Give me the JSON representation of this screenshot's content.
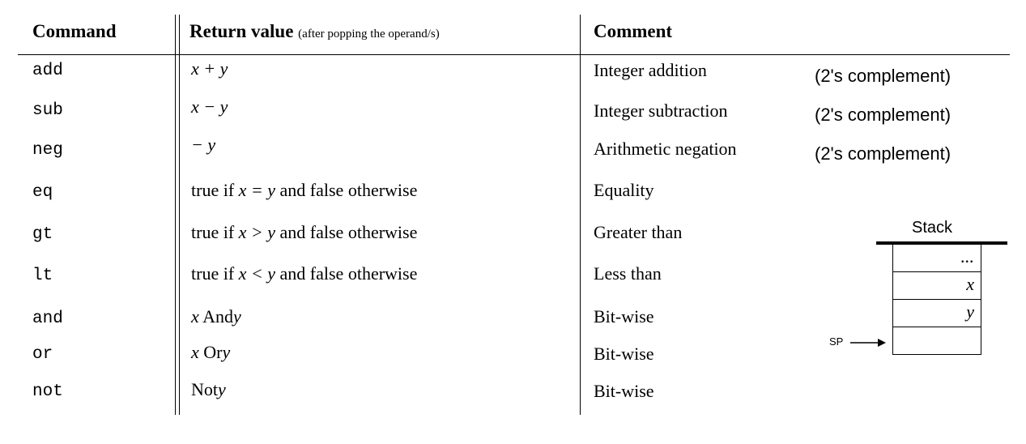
{
  "headers": {
    "command": "Command",
    "return_value": "Return value",
    "return_value_note": "(after popping the operand/s)",
    "comment": "Comment"
  },
  "rows": [
    {
      "command": "add",
      "return_value": "x + y",
      "comment": "Integer addition",
      "note": "(2's complement)"
    },
    {
      "command": "sub",
      "return_value": "x − y",
      "comment": "Integer subtraction",
      "note": "(2's complement)"
    },
    {
      "command": "neg",
      "return_value": "− y",
      "comment": "Arithmetic negation",
      "note": "(2's complement)"
    },
    {
      "command": "eq",
      "return_value_prefix": "true if",
      "return_value_expr": "x = y",
      "return_value_suffix": "and false otherwise",
      "comment": "Equality"
    },
    {
      "command": "gt",
      "return_value_prefix": "true if",
      "return_value_expr": "x > y",
      "return_value_suffix": "and false otherwise",
      "comment": "Greater than"
    },
    {
      "command": "lt",
      "return_value_prefix": "true if",
      "return_value_expr": "x < y",
      "return_value_suffix": "and false otherwise",
      "comment": "Less than"
    },
    {
      "command": "and",
      "return_value_a": "x",
      "return_value_op": "And",
      "return_value_b": "y",
      "comment": "Bit-wise"
    },
    {
      "command": "or",
      "return_value_a": "x",
      "return_value_op": "Or",
      "return_value_b": "y",
      "comment": "Bit-wise"
    },
    {
      "command": "not",
      "return_value_op": "Not",
      "return_value_b": "y",
      "comment": "Bit-wise"
    }
  ],
  "stack_diagram": {
    "label": "Stack",
    "cells": [
      "...",
      "x",
      "y",
      ""
    ],
    "pointer_label": "SP"
  }
}
